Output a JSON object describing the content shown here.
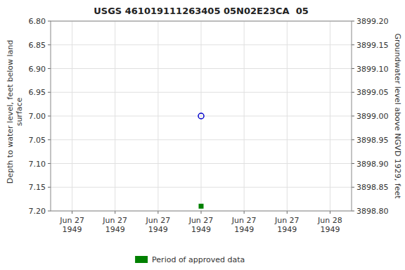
{
  "chart_data": {
    "type": "scatter",
    "title": "USGS 461019111263405 05N02E23CA  05",
    "y_label": "Depth to water level, feet below land\nsurface",
    "y2_label": "Groundwater level above NGVD 1929, feet",
    "categories": [
      "Jun 27\n1949",
      "Jun 27\n1949",
      "Jun 27\n1949",
      "Jun 27\n1949",
      "Jun 27\n1949",
      "Jun 27\n1949",
      "Jun 28\n1949"
    ],
    "series": [
      {
        "color": "#0000cc",
        "marker": "open-circle",
        "values": [
          null,
          null,
          null,
          7.0,
          null,
          null,
          null
        ]
      },
      {
        "name": "Period of approved data",
        "color": "#008000",
        "marker": "square",
        "values": [
          null,
          null,
          null,
          7.19,
          null,
          null,
          null
        ]
      }
    ],
    "ylim": [
      7.2,
      6.8
    ],
    "yticks": [
      {
        "value": 6.8,
        "label": "6.80"
      },
      6.85,
      {
        "value": 6.9,
        "label": "6.90"
      },
      6.95,
      {
        "value": 7.0,
        "label": "7.00"
      },
      7.05,
      {
        "value": 7.1,
        "label": "7.10"
      },
      7.15,
      {
        "value": 7.2,
        "label": "7.20"
      }
    ],
    "y2lim": [
      3898.8,
      3899.2
    ],
    "y2ticks": [
      {
        "value": 3899.2,
        "label": "3899.20"
      },
      3899.15,
      {
        "value": 3899.1,
        "label": "3899.10"
      },
      3899.05,
      {
        "value": 3899.0,
        "label": "3899.00"
      },
      3898.95,
      {
        "value": 3898.9,
        "label": "3898.90"
      },
      3898.85,
      {
        "value": 3898.8,
        "label": "3898.80"
      }
    ],
    "grid": true,
    "legend": "bottom"
  }
}
